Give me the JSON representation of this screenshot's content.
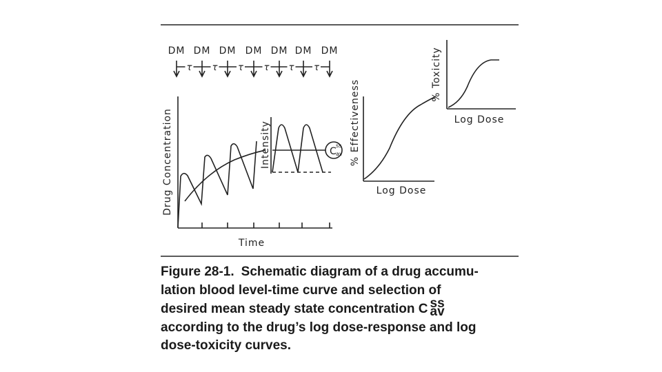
{
  "dosing": {
    "dose_labels": [
      "DM",
      "DM",
      "DM",
      "DM",
      "DM",
      "DM",
      "DM"
    ],
    "interval_labels": [
      "τ",
      "τ",
      "τ",
      "τ",
      "τ",
      "τ"
    ]
  },
  "concentration_panel": {
    "y_label": "Drug Concentration",
    "x_label": "Time",
    "inset_y_label": "Intensity",
    "css": {
      "symbol": "C",
      "sup": "ss",
      "sub": "av"
    }
  },
  "effectiveness_panel": {
    "y_label": "% Effectiveness",
    "x_label": "Log Dose"
  },
  "toxicity_panel": {
    "y_label": "% Toxicity",
    "x_label": "Log Dose"
  },
  "caption": {
    "label": "Figure 28-1.",
    "lines": [
      "Schematic diagram of a drug accumu-",
      "lation blood level-time curve and selection of",
      "desired mean steady state concentration C",
      "according to the drug’s log dose-response and log",
      "dose-toxicity curves."
    ],
    "css_sup": "ss",
    "css_sub": "av"
  }
}
